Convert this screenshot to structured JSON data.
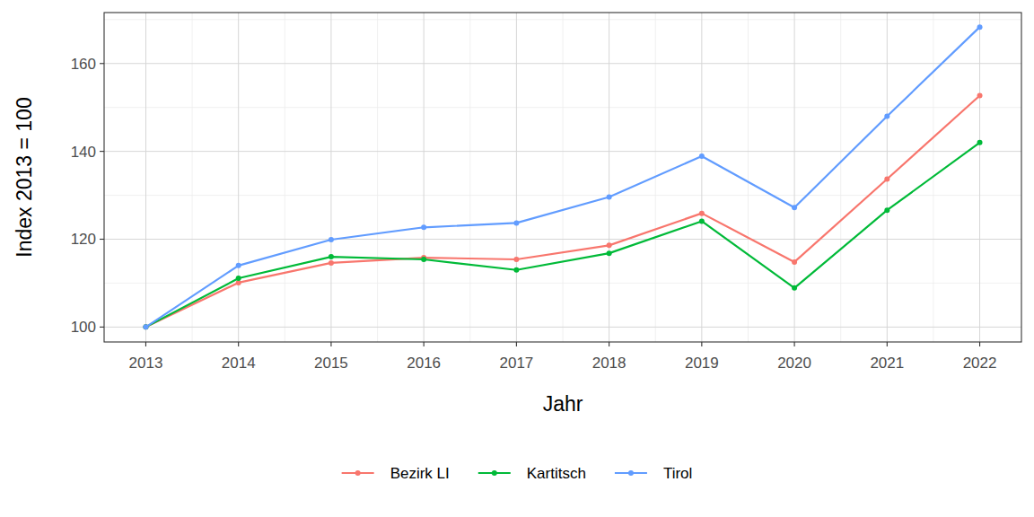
{
  "chart_data": {
    "type": "line",
    "x_label": "Jahr",
    "y_label": "Index  2013  = 100",
    "x": [
      2013,
      2014,
      2015,
      2016,
      2017,
      2018,
      2019,
      2020,
      2021,
      2022
    ],
    "xlim": [
      2012.55,
      2022.45
    ],
    "xticks": [
      2013,
      2014,
      2015,
      2016,
      2017,
      2018,
      2019,
      2020,
      2021,
      2022
    ],
    "ylim": [
      96.6,
      171.6
    ],
    "yticks": [
      100,
      120,
      140,
      160
    ],
    "grid": true,
    "legend": "bottom",
    "marker": "circle",
    "series": [
      {
        "name": "Bezirk LI",
        "color": "#F8766D",
        "values": [
          100,
          110.1,
          114.6,
          115.8,
          115.4,
          118.6,
          125.9,
          114.8,
          133.7,
          152.7
        ]
      },
      {
        "name": "Kartitsch",
        "color": "#00BA38",
        "values": [
          100,
          111.1,
          116.0,
          115.4,
          113.0,
          116.8,
          124.1,
          108.9,
          126.6,
          142.0
        ]
      },
      {
        "name": "Tirol",
        "color": "#619CFF",
        "values": [
          100,
          114.0,
          119.9,
          122.7,
          123.7,
          129.6,
          138.9,
          127.2,
          148.0,
          168.3
        ]
      }
    ]
  }
}
